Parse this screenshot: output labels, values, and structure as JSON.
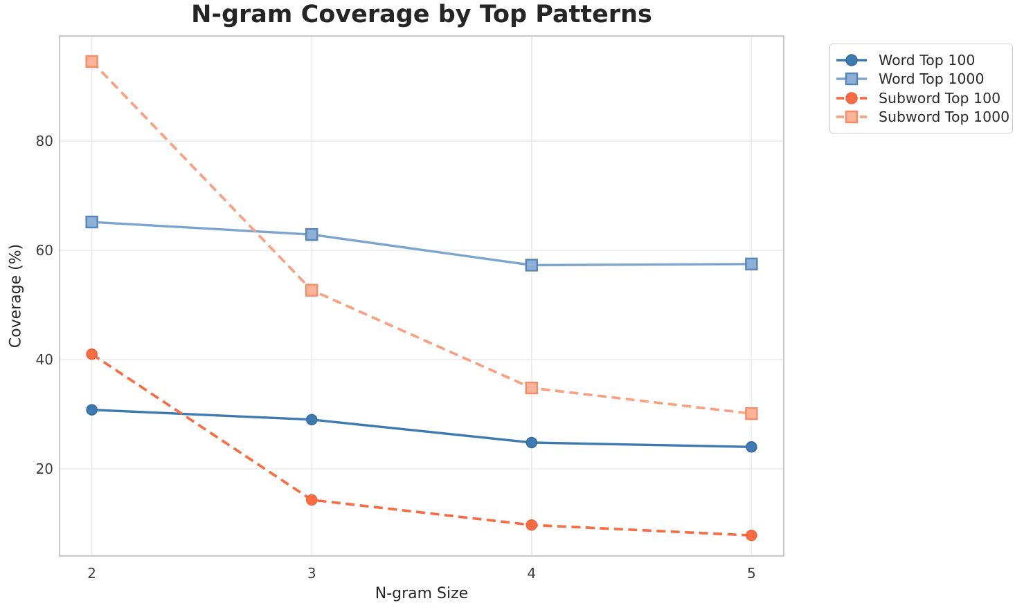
{
  "title": {
    "text": "N-gram Coverage by Top Patterns"
  },
  "axis_colors": {
    "spine": "#c9c9c9",
    "grid": "#ebebeb",
    "tick_text": "#3c3c3c",
    "label_text": "#262626",
    "title_text": "#252525"
  },
  "chart_data": {
    "type": "line",
    "title": "N-gram Coverage by Top Patterns",
    "xlabel": "N-gram Size",
    "ylabel": "Coverage (%)",
    "x": [
      2,
      3,
      4,
      5
    ],
    "series": [
      {
        "name": "Word Top 100",
        "values": [
          30.8,
          29.0,
          24.8,
          24.0
        ],
        "color": "#3d7ab1",
        "marker_fill": "#3d7ab1",
        "marker_edge": "#36699c",
        "line_style": "solid",
        "marker": "circle"
      },
      {
        "name": "Word Top 1000",
        "values": [
          65.2,
          62.9,
          57.3,
          57.5
        ],
        "color": "#7da4cd",
        "marker_fill": "#8fb0d6",
        "marker_edge": "#5585ba",
        "line_style": "solid",
        "marker": "square"
      },
      {
        "name": "Subword Top 100",
        "values": [
          41.0,
          14.3,
          9.7,
          7.8
        ],
        "color": "#f86c44",
        "marker_fill": "#f86c44",
        "marker_edge": "#f05f38",
        "line_style": "dashed",
        "marker": "circle"
      },
      {
        "name": "Subword Top 1000",
        "values": [
          94.6,
          52.7,
          34.8,
          30.1
        ],
        "color": "#faa081",
        "marker_fill": "#fbb49a",
        "marker_edge": "#f88b66",
        "line_style": "dashed",
        "marker": "square"
      }
    ],
    "xlim": [
      1.85,
      5.15
    ],
    "ylim": [
      3.9,
      99.4
    ],
    "x_ticks": [
      "2",
      "3",
      "4",
      "5"
    ],
    "x_tick_values": [
      2,
      3,
      4,
      5
    ],
    "y_ticks": [
      "20",
      "40",
      "60",
      "80"
    ],
    "y_tick_values": [
      20,
      40,
      60,
      80
    ],
    "grid": true,
    "legend_position": "outside upper right"
  }
}
